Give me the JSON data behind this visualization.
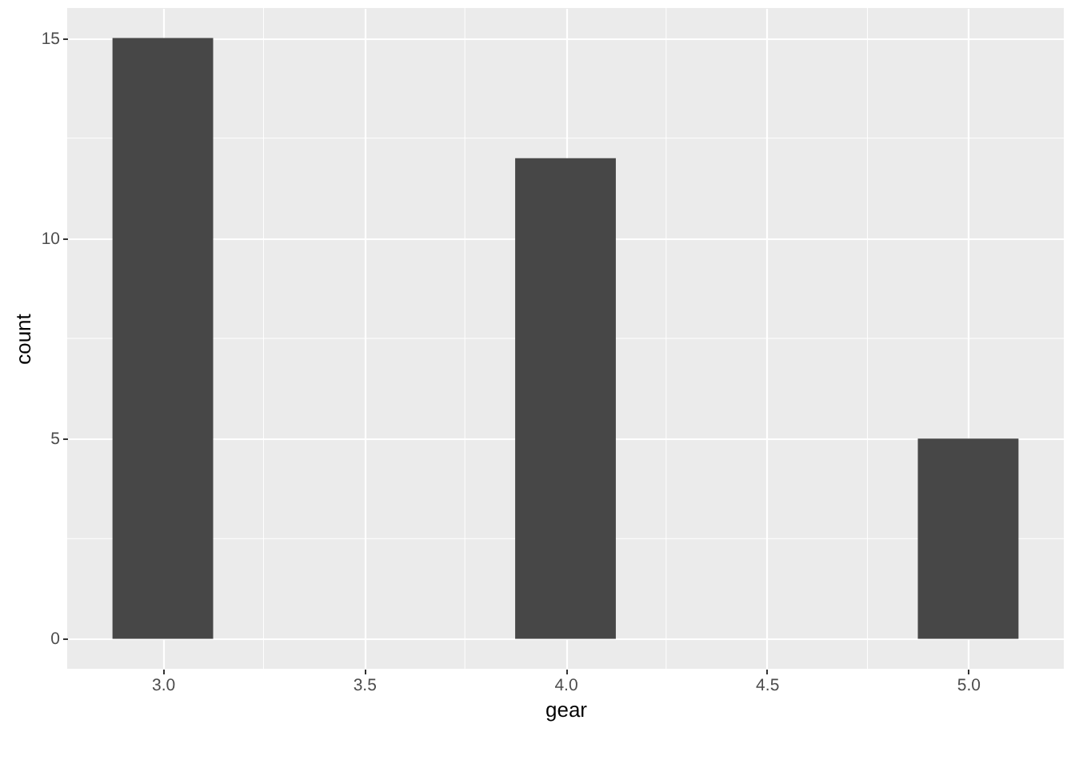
{
  "chart_data": {
    "type": "bar",
    "xlabel": "gear",
    "ylabel": "count",
    "x": [
      3,
      4,
      5
    ],
    "values": [
      15,
      12,
      5
    ],
    "color": "#474747",
    "xlim": [
      2.7625,
      5.2375
    ],
    "xticks": [
      {
        "value": 3,
        "label": "3.0"
      },
      {
        "value": 3.5,
        "label": "3.5"
      },
      {
        "value": 4,
        "label": "4.0"
      },
      {
        "value": 4.5,
        "label": "4.5"
      },
      {
        "value": 5,
        "label": "5.0"
      }
    ],
    "ylim": [
      -0.75,
      15.75
    ],
    "yticks": [
      0,
      5,
      10,
      15
    ],
    "grid": true
  }
}
